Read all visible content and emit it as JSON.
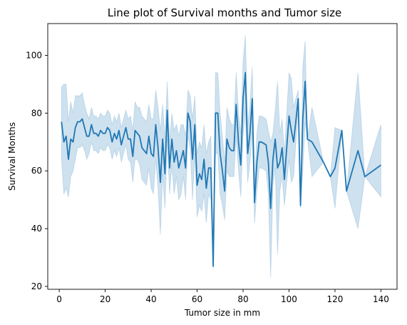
{
  "chart_data": {
    "type": "line",
    "title": "Line plot of Survival months and Tumor size",
    "xlabel": "Tumor size in mm",
    "ylabel": "Survival Months",
    "xlim": [
      -5,
      147
    ],
    "ylim": [
      19,
      111
    ],
    "xticks": [
      0,
      20,
      40,
      60,
      80,
      100,
      120,
      140
    ],
    "yticks": [
      20,
      40,
      60,
      80,
      100
    ],
    "grid": false,
    "colors": {
      "line": "#1f77b4",
      "band": "#1f77b4"
    },
    "series": [
      {
        "x": [
          1,
          2,
          3,
          4,
          5,
          6,
          7,
          8,
          9,
          10,
          11,
          12,
          13,
          14,
          15,
          16,
          17,
          18,
          19,
          20,
          21,
          22,
          23,
          24,
          25,
          26,
          27,
          28,
          29,
          30,
          31,
          32,
          33,
          34,
          35,
          36,
          37,
          38,
          39,
          40,
          41,
          42,
          43,
          44,
          45,
          46,
          47,
          48,
          49,
          50,
          51,
          52,
          53,
          54,
          55,
          56,
          57,
          58,
          59,
          60,
          61,
          62,
          63,
          64,
          65,
          66,
          67,
          68,
          69,
          70,
          71,
          72,
          73,
          74,
          75,
          76,
          77,
          78,
          79,
          80,
          81,
          82,
          83,
          84,
          85,
          86,
          87,
          88,
          90,
          91,
          92,
          93,
          94,
          95,
          96,
          97,
          98,
          100,
          101,
          102,
          104,
          105,
          106,
          107,
          108,
          110,
          115,
          118,
          120,
          123,
          125,
          130,
          133,
          140
        ],
        "y": [
          77,
          70,
          72,
          64,
          71,
          70,
          75,
          77,
          77,
          78,
          75,
          72,
          72,
          76,
          73,
          73,
          72,
          74,
          73,
          73,
          75,
          74,
          70,
          73,
          71,
          74,
          69,
          72,
          75,
          71,
          71,
          65,
          74,
          73,
          72,
          68,
          67,
          66,
          72,
          66,
          65,
          76,
          68,
          56,
          71,
          59,
          81,
          61,
          71,
          63,
          67,
          61,
          64,
          67,
          61,
          80,
          77,
          64,
          76,
          55,
          59,
          57,
          64,
          54,
          61,
          61,
          27,
          80,
          80,
          66,
          60,
          53,
          71,
          68,
          67,
          67,
          83,
          70,
          62,
          85,
          94,
          66,
          73,
          85,
          49,
          63,
          70,
          70,
          69,
          63,
          47,
          64,
          71,
          61,
          63,
          68,
          57,
          79,
          74,
          70,
          85,
          48,
          78,
          91,
          71,
          70,
          63,
          58,
          61,
          74,
          53,
          67,
          58,
          62
        ],
        "lower": [
          64,
          52,
          54,
          51,
          58,
          60,
          64,
          68,
          68,
          69,
          67,
          64,
          66,
          70,
          67,
          67,
          66,
          68,
          67,
          67,
          69,
          68,
          64,
          67,
          65,
          68,
          63,
          66,
          69,
          64,
          63,
          56,
          64,
          64,
          62,
          57,
          56,
          55,
          61,
          54,
          52,
          64,
          54,
          38,
          59,
          47,
          71,
          52,
          62,
          52,
          58,
          50,
          52,
          58,
          50,
          72,
          68,
          50,
          66,
          44,
          48,
          46,
          52,
          42,
          52,
          50,
          26,
          66,
          66,
          52,
          48,
          43,
          60,
          58,
          58,
          58,
          72,
          60,
          51,
          72,
          81,
          56,
          63,
          74,
          42,
          53,
          61,
          61,
          60,
          52,
          23,
          55,
          61,
          31,
          53,
          58,
          48,
          64,
          56,
          58,
          82,
          47,
          60,
          77,
          71,
          58,
          63,
          58,
          47,
          74,
          53,
          40,
          58,
          51
        ],
        "upper": [
          89,
          90,
          90,
          77,
          84,
          80,
          86,
          86,
          86,
          87,
          83,
          80,
          78,
          82,
          79,
          79,
          78,
          80,
          79,
          79,
          81,
          80,
          76,
          79,
          77,
          80,
          75,
          78,
          81,
          78,
          79,
          74,
          84,
          82,
          82,
          79,
          78,
          77,
          83,
          78,
          78,
          88,
          82,
          74,
          83,
          71,
          91,
          70,
          80,
          74,
          76,
          72,
          76,
          76,
          72,
          88,
          86,
          78,
          86,
          66,
          70,
          68,
          76,
          66,
          70,
          72,
          28,
          94,
          94,
          80,
          72,
          63,
          82,
          78,
          76,
          76,
          94,
          80,
          73,
          98,
          107,
          76,
          83,
          96,
          56,
          73,
          79,
          79,
          78,
          74,
          70,
          73,
          81,
          91,
          73,
          78,
          66,
          94,
          92,
          82,
          88,
          49,
          96,
          105,
          71,
          82,
          63,
          58,
          75,
          74,
          53,
          94,
          58,
          76
        ]
      }
    ]
  }
}
